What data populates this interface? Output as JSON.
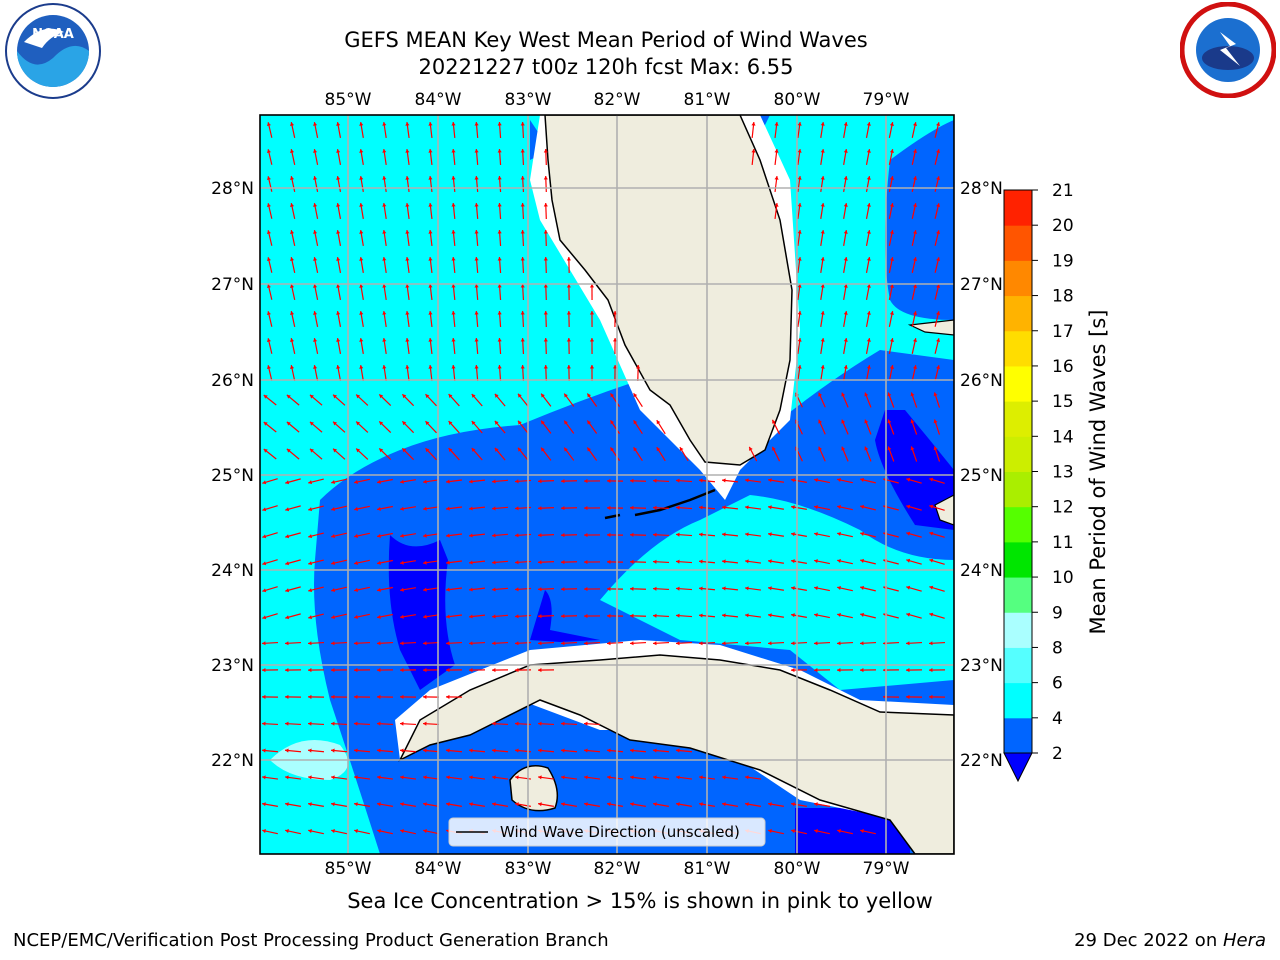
{
  "header": {
    "title_line1": "GEFS MEAN Key West Mean Period of Wind Waves",
    "title_line2": "20221227 t00z 120h fcst   Max: 6.55"
  },
  "logos": {
    "noaa_text": "NOAA",
    "nws_icon": "nws-logo-icon"
  },
  "map": {
    "lon_labels": [
      "85°W",
      "84°W",
      "83°W",
      "82°W",
      "81°W",
      "80°W",
      "79°W"
    ],
    "lat_labels": [
      "28°N",
      "27°N",
      "26°N",
      "25°N",
      "24°N",
      "23°N",
      "22°N"
    ],
    "legend_label": "Wind Wave Direction (unscaled)",
    "land_color": "#efedde",
    "arrow_color": "#ff0000"
  },
  "colorbar": {
    "label": "Mean Period of Wind Waves [s]",
    "ticks": [
      "2",
      "4",
      "6",
      "8",
      "9",
      "10",
      "11",
      "12",
      "13",
      "14",
      "15",
      "16",
      "17",
      "18",
      "19",
      "20",
      "21"
    ],
    "colors": [
      "#0065ff",
      "#00ffff",
      "#55ffff",
      "#aaffff",
      "#55ff80",
      "#00e600",
      "#55ff00",
      "#aaee00",
      "#ccee00",
      "#ddee00",
      "#ffff00",
      "#ffdd00",
      "#ffb300",
      "#ff8800",
      "#ff5500",
      "#ff2200"
    ],
    "under_color": "#0000ff"
  },
  "note": "Sea Ice Concentration > 15% is shown in pink to yellow",
  "footer": {
    "credit": "NCEP/EMC/Verification Post Processing Product Generation Branch",
    "date": "29 Dec 2022 on ",
    "host": "Hera"
  }
}
